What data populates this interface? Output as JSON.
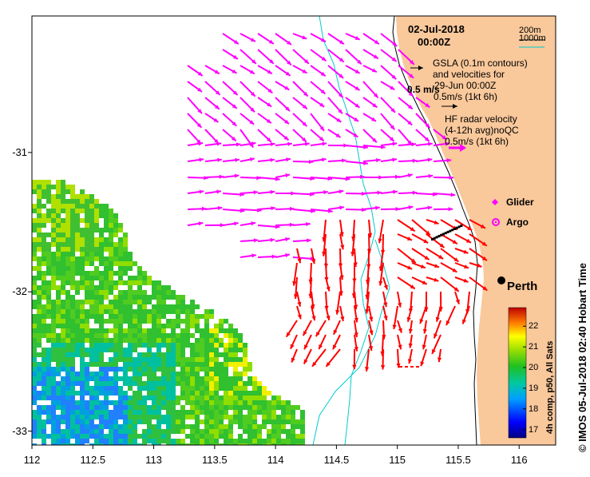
{
  "header": {
    "date": "02-Jul-2018",
    "time": "00:00Z"
  },
  "legend": {
    "contour_200m": "200m",
    "contour_1000m": "1000m",
    "gsla_line1": "GSLA (0.1m contours)",
    "gsla_line2": "and velocities for",
    "gsla_line3": "29-Jun 00:00Z",
    "gsla_scale": "0.5m/s (1kt 6h)",
    "speed_marker": "0.5 m/s",
    "hf_line1": "HF radar velocity",
    "hf_line2": "(4-12h avg)noQC",
    "hf_scale": "0.5m/s (1kt 6h)",
    "glider": "Glider",
    "argo": "Argo"
  },
  "city": "Perth",
  "colorbar": {
    "title": "4h comp, p50, All Sats",
    "ticks": [
      "17",
      "18",
      "19",
      "20",
      "21",
      "22"
    ],
    "min": 16.6,
    "max": 22.9
  },
  "watermark": "© IMOS 05-Jul-2018 02:40 Hobart Time",
  "axes": {
    "x_ticks": [
      "112",
      "112.5",
      "113",
      "113.5",
      "114",
      "114.5",
      "115",
      "115.5",
      "116"
    ],
    "y_ticks": [
      "-31",
      "-32",
      "-33"
    ],
    "lon_range": [
      112,
      116.3
    ],
    "lat_range": [
      -33.1,
      -30.02
    ]
  },
  "colors": {
    "land": "#f9c89b",
    "hf_arrow": "#ff00ff",
    "gsla_arrow": "#ff0000",
    "contour_200": "#000000",
    "contour_1000": "#00cccc",
    "argo": "#ff00ff"
  }
}
